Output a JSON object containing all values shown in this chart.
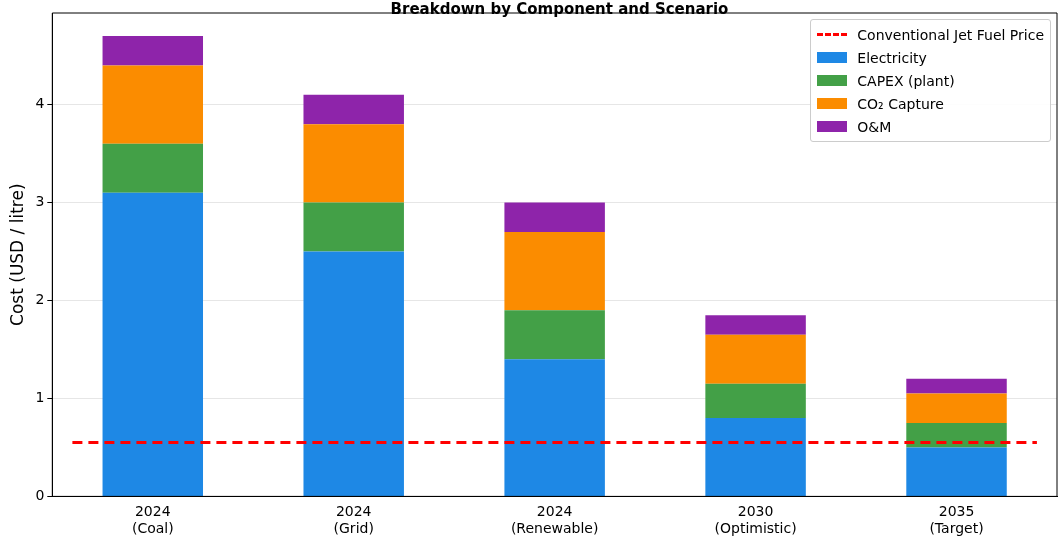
{
  "chart_data": {
    "type": "bar",
    "title": "Breakdown by Component and Scenario",
    "ylabel": "Cost (USD / litre)",
    "stacked": true,
    "categories": [
      "2024\n(Coal)",
      "2024\n(Grid)",
      "2024\n(Renewable)",
      "2030\n(Optimistic)",
      "2035\n(Target)"
    ],
    "series": [
      {
        "name": "Electricity",
        "color": "#1e88e5",
        "values": [
          3.1,
          2.5,
          1.4,
          0.8,
          0.5
        ]
      },
      {
        "name": "CAPEX (plant)",
        "color": "#43a047",
        "values": [
          0.5,
          0.5,
          0.5,
          0.35,
          0.25
        ]
      },
      {
        "name": "CO₂ Capture",
        "color": "#fb8c00",
        "values": [
          0.8,
          0.8,
          0.8,
          0.5,
          0.3
        ]
      },
      {
        "name": "O&M",
        "color": "#8e24aa",
        "values": [
          0.3,
          0.3,
          0.3,
          0.2,
          0.15
        ]
      }
    ],
    "ref_lines": [
      {
        "axis": "y",
        "value": 0.55,
        "label": "Conventional Jet Fuel Price",
        "color": "#ff0000",
        "line_style": "dashed"
      }
    ],
    "ylim": [
      0,
      4.935
    ],
    "yticks": [
      0,
      1,
      2,
      3,
      4
    ],
    "grid": "y",
    "legend": "top right"
  }
}
